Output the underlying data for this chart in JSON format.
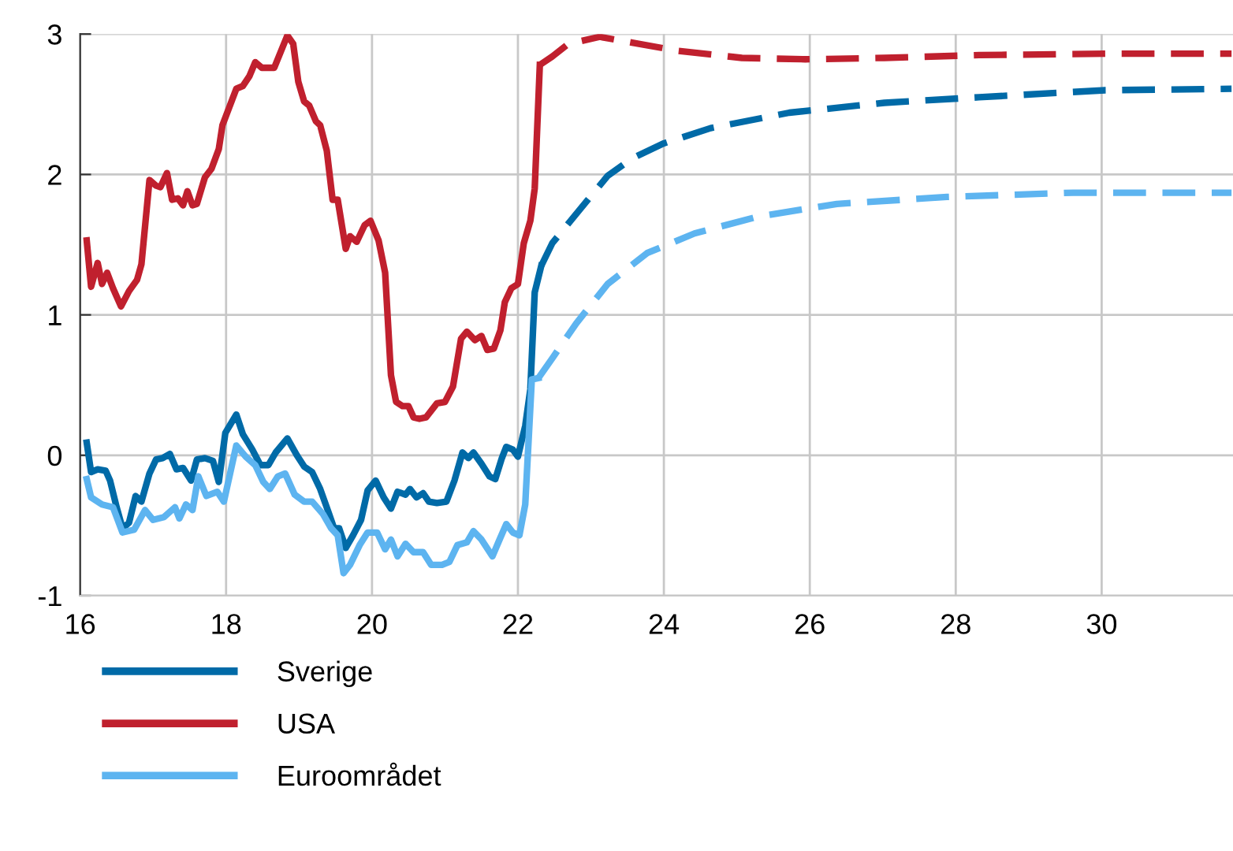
{
  "chart_data": {
    "type": "line",
    "xlim": [
      16,
      31.8
    ],
    "ylim": [
      -1,
      3
    ],
    "xticks": [
      16,
      18,
      20,
      22,
      24,
      26,
      28,
      30
    ],
    "yticks": [
      -1,
      0,
      1,
      2,
      3
    ],
    "grid": true,
    "legend": "bottom",
    "line_style": "solid",
    "series": [
      {
        "name": "Sverige",
        "color": "#006aa7",
        "x": [
          16.09,
          16.15,
          16.24,
          16.35,
          16.41,
          16.5,
          16.58,
          16.67,
          16.76,
          16.84,
          16.95,
          17.04,
          17.13,
          17.23,
          17.32,
          17.41,
          17.52,
          17.6,
          17.71,
          17.82,
          17.9,
          17.99,
          18.14,
          18.23,
          18.36,
          18.47,
          18.58,
          18.68,
          18.84,
          18.97,
          19.07,
          19.18,
          19.29,
          19.4,
          19.48,
          19.55,
          19.64,
          19.74,
          19.85,
          19.94,
          20.05,
          20.16,
          20.26,
          20.35,
          20.46,
          20.52,
          20.61,
          20.7,
          20.78,
          20.89,
          21.02,
          21.13,
          21.24,
          21.32,
          21.39,
          21.5,
          21.61,
          21.69,
          21.78,
          21.84,
          21.93,
          22.0,
          22.1,
          22.17,
          22.23,
          22.32
        ],
        "values": [
          0.09,
          -0.12,
          -0.1,
          -0.11,
          -0.18,
          -0.37,
          -0.52,
          -0.48,
          -0.29,
          -0.33,
          -0.13,
          -0.03,
          -0.02,
          0.01,
          -0.1,
          -0.09,
          -0.18,
          -0.03,
          -0.02,
          -0.04,
          -0.19,
          0.16,
          0.29,
          0.15,
          0.04,
          -0.07,
          -0.07,
          0.02,
          0.12,
          0,
          -0.08,
          -0.12,
          -0.24,
          -0.4,
          -0.52,
          -0.52,
          -0.66,
          -0.57,
          -0.46,
          -0.25,
          -0.18,
          -0.3,
          -0.38,
          -0.26,
          -0.28,
          -0.24,
          -0.3,
          -0.27,
          -0.33,
          -0.34,
          -0.33,
          -0.18,
          0.02,
          -0.02,
          0.02,
          -0.06,
          -0.15,
          -0.17,
          -0.02,
          0.06,
          0.04,
          -0.01,
          0.21,
          0.47,
          1.16,
          1.35
        ]
      },
      {
        "color": "#006aa7",
        "line_style": "dashed",
        "x": [
          22.32,
          22.47,
          22.8,
          23.23,
          23.55,
          23.99,
          24.64,
          25.72,
          27.02,
          28.32,
          30.05,
          31.78
        ],
        "values": [
          1.35,
          1.51,
          1.72,
          1.99,
          2.11,
          2.22,
          2.33,
          2.44,
          2.51,
          2.55,
          2.6,
          2.61
        ]
      },
      {
        "name": "USA",
        "color": "#c0202e",
        "x": [
          16.09,
          16.15,
          16.24,
          16.3,
          16.37,
          16.45,
          16.56,
          16.67,
          16.78,
          16.84,
          16.95,
          17.04,
          17.1,
          17.19,
          17.26,
          17.34,
          17.41,
          17.47,
          17.54,
          17.6,
          17.71,
          17.8,
          17.9,
          17.95,
          18.14,
          18.23,
          18.32,
          18.4,
          18.49,
          18.66,
          18.84,
          18.92,
          18.99,
          19.07,
          19.14,
          19.23,
          19.29,
          19.38,
          19.46,
          19.53,
          19.64,
          19.7,
          19.79,
          19.9,
          19.98,
          20.09,
          20.18,
          20.26,
          20.33,
          20.42,
          20.5,
          20.57,
          20.65,
          20.74,
          20.89,
          21.0,
          21.11,
          21.22,
          21.3,
          21.41,
          21.5,
          21.58,
          21.67,
          21.76,
          21.82,
          21.91,
          22.0,
          22.08,
          22.17,
          22.23,
          22.3
        ],
        "values": [
          1.53,
          1.2,
          1.37,
          1.22,
          1.3,
          1.19,
          1.06,
          1.17,
          1.25,
          1.36,
          1.96,
          1.92,
          1.91,
          2.01,
          1.82,
          1.83,
          1.78,
          1.88,
          1.78,
          1.79,
          1.98,
          2.04,
          2.18,
          2.35,
          2.61,
          2.63,
          2.7,
          2.8,
          2.76,
          2.76,
          2.99,
          2.93,
          2.66,
          2.52,
          2.49,
          2.38,
          2.35,
          2.17,
          1.82,
          1.82,
          1.47,
          1.56,
          1.52,
          1.64,
          1.67,
          1.53,
          1.3,
          0.57,
          0.38,
          0.35,
          0.35,
          0.27,
          0.26,
          0.27,
          0.37,
          0.38,
          0.49,
          0.83,
          0.88,
          0.82,
          0.85,
          0.75,
          0.76,
          0.89,
          1.09,
          1.19,
          1.22,
          1.51,
          1.67,
          1.9,
          2.78
        ]
      },
      {
        "color": "#c0202e",
        "line_style": "dashed",
        "x": [
          22.3,
          22.47,
          22.69,
          23.12,
          23.55,
          24.2,
          25.07,
          25.94,
          27.02,
          28.32,
          30.05,
          31.78
        ],
        "values": [
          2.78,
          2.84,
          2.93,
          2.98,
          2.94,
          2.88,
          2.83,
          2.82,
          2.83,
          2.85,
          2.86,
          2.86
        ]
      },
      {
        "name": "Euroområdet",
        "color": "#5db4f0",
        "x": [
          16.09,
          16.15,
          16.3,
          16.45,
          16.58,
          16.74,
          16.89,
          17.0,
          17.15,
          17.3,
          17.36,
          17.45,
          17.54,
          17.62,
          17.73,
          17.88,
          17.97,
          18.14,
          18.27,
          18.4,
          18.51,
          18.6,
          18.71,
          18.81,
          18.94,
          19.07,
          19.18,
          19.33,
          19.44,
          19.53,
          19.61,
          19.7,
          19.83,
          19.94,
          20.07,
          20.18,
          20.26,
          20.35,
          20.46,
          20.57,
          20.7,
          20.81,
          20.96,
          21.06,
          21.17,
          21.3,
          21.39,
          21.5,
          21.65,
          21.74,
          21.84,
          21.93,
          22.02,
          22.1,
          22.19,
          22.28
        ],
        "values": [
          -0.17,
          -0.3,
          -0.35,
          -0.37,
          -0.55,
          -0.53,
          -0.39,
          -0.46,
          -0.44,
          -0.37,
          -0.45,
          -0.35,
          -0.39,
          -0.15,
          -0.29,
          -0.26,
          -0.33,
          0.07,
          -0.01,
          -0.07,
          -0.19,
          -0.24,
          -0.15,
          -0.13,
          -0.28,
          -0.33,
          -0.33,
          -0.42,
          -0.52,
          -0.57,
          -0.84,
          -0.78,
          -0.64,
          -0.55,
          -0.55,
          -0.67,
          -0.6,
          -0.72,
          -0.63,
          -0.69,
          -0.69,
          -0.78,
          -0.78,
          -0.76,
          -0.64,
          -0.62,
          -0.54,
          -0.6,
          -0.72,
          -0.61,
          -0.49,
          -0.55,
          -0.57,
          -0.35,
          0.54,
          0.55
        ]
      },
      {
        "color": "#5db4f0",
        "line_style": "dashed",
        "x": [
          22.28,
          22.47,
          22.8,
          23.23,
          23.77,
          24.42,
          25.29,
          26.37,
          27.88,
          29.61,
          31.78
        ],
        "values": [
          0.55,
          0.69,
          0.94,
          1.22,
          1.44,
          1.58,
          1.7,
          1.79,
          1.84,
          1.87,
          1.87
        ]
      }
    ]
  }
}
